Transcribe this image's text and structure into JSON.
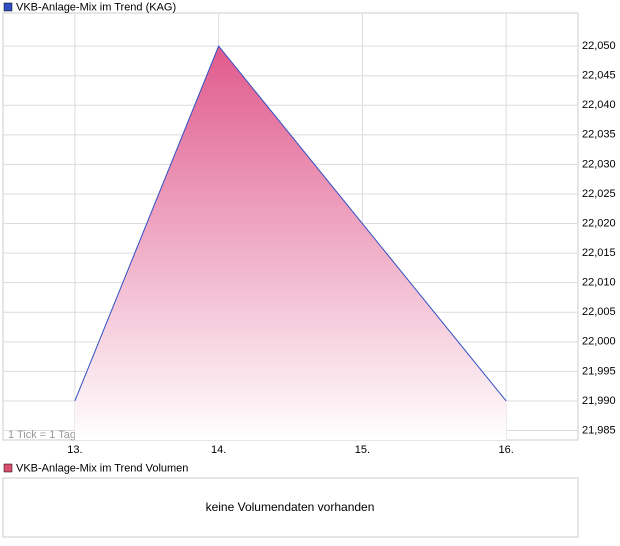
{
  "chart_data": {
    "type": "area",
    "series": [
      {
        "name": "VKB-Anlage-Mix im Trend (KAG)",
        "color": "#2f4fc4",
        "values": [
          21.99,
          22.05,
          22.02,
          21.99
        ]
      }
    ],
    "categories": [
      "13.",
      "14.",
      "15.",
      "16."
    ],
    "ylim": [
      21.9834,
      22.0556
    ],
    "yticks": [
      {
        "value": 21.985,
        "label": "21,985"
      },
      {
        "value": 21.99,
        "label": "21,990"
      },
      {
        "value": 21.995,
        "label": "21,995"
      },
      {
        "value": 22.0,
        "label": "22,000"
      },
      {
        "value": 22.005,
        "label": "22,005"
      },
      {
        "value": 22.01,
        "label": "22,010"
      },
      {
        "value": 22.015,
        "label": "22,015"
      },
      {
        "value": 22.02,
        "label": "22,020"
      },
      {
        "value": 22.025,
        "label": "22,025"
      },
      {
        "value": 22.03,
        "label": "22,030"
      },
      {
        "value": 22.035,
        "label": "22,035"
      },
      {
        "value": 22.04,
        "label": "22,040"
      },
      {
        "value": 22.045,
        "label": "22,045"
      },
      {
        "value": 22.05,
        "label": "22,050"
      }
    ],
    "grid": true,
    "annotation": "1 Tick = 1 Tag"
  },
  "volume_panel": {
    "title": "VKB-Anlage-Mix im Trend Volumen",
    "color": "#d9506e",
    "note": "keine Volumendaten vorhanden"
  }
}
